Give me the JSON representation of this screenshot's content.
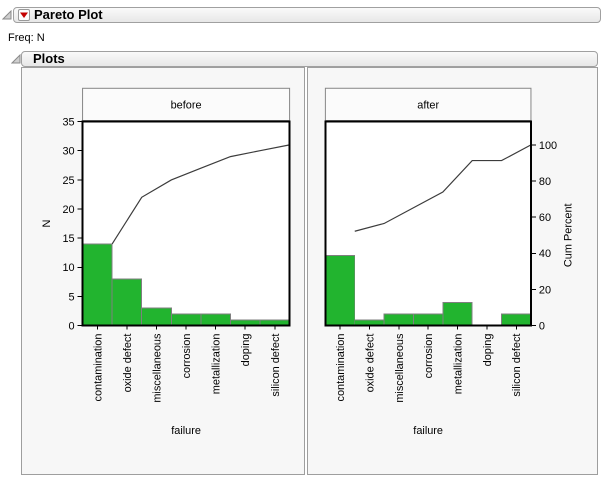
{
  "outline": {
    "title": "Pareto Plot",
    "freq_label": "Freq: N",
    "plots_title": "Plots",
    "disclosure_icon": "open-disclosure-triangle",
    "menu_icon": "red-triangle-menu"
  },
  "colors": {
    "bar_fill": "#22b42f",
    "bar_stroke": "#7f7f7f",
    "cumulative_line": "#3c3c3c",
    "plot_frame": "#000000",
    "plot_bg": "#ffffff",
    "red_triangle": "#c40000",
    "disclosure_fill": "#cfcfcf",
    "disclosure_stroke": "#8a8a8a",
    "group_header_bg": "#fbfbfb",
    "group_header_border": "#858585"
  },
  "chart_data": [
    {
      "type": "bar",
      "subtype": "pareto",
      "panel_label": "before",
      "categories": [
        "contamination",
        "oxide defect",
        "miscellaneous",
        "corrosion",
        "metallization",
        "doping",
        "silicon defect"
      ],
      "values": [
        14,
        8,
        3,
        2,
        2,
        1,
        1
      ],
      "cumulative_counts": [
        14,
        22,
        25,
        27,
        29,
        30,
        31
      ],
      "cum_percent": [
        45.2,
        71.0,
        80.6,
        87.1,
        93.5,
        96.8,
        100.0
      ],
      "total": 31,
      "xlabel": "failure",
      "ylabel": "N",
      "y_ticks": [
        0,
        5,
        10,
        15,
        20,
        25,
        30,
        35
      ],
      "ylim": [
        0,
        35
      ],
      "grid": false,
      "legend": "none"
    },
    {
      "type": "bar",
      "subtype": "pareto",
      "panel_label": "after",
      "categories": [
        "contamination",
        "oxide defect",
        "miscellaneous",
        "corrosion",
        "metallization",
        "doping",
        "silicon defect"
      ],
      "values": [
        12,
        1,
        2,
        2,
        4,
        0,
        2
      ],
      "cumulative_counts": [
        12,
        13,
        15,
        17,
        21,
        21,
        23
      ],
      "cum_percent": [
        52.2,
        56.5,
        65.2,
        73.9,
        91.3,
        91.3,
        100.0
      ],
      "total": 23,
      "xlabel": "failure",
      "ylabel_right": "Cum Percent",
      "right_ticks": [
        0,
        20,
        40,
        60,
        80,
        100
      ],
      "ylim": [
        0,
        35
      ],
      "grid": false,
      "legend": "none"
    }
  ]
}
